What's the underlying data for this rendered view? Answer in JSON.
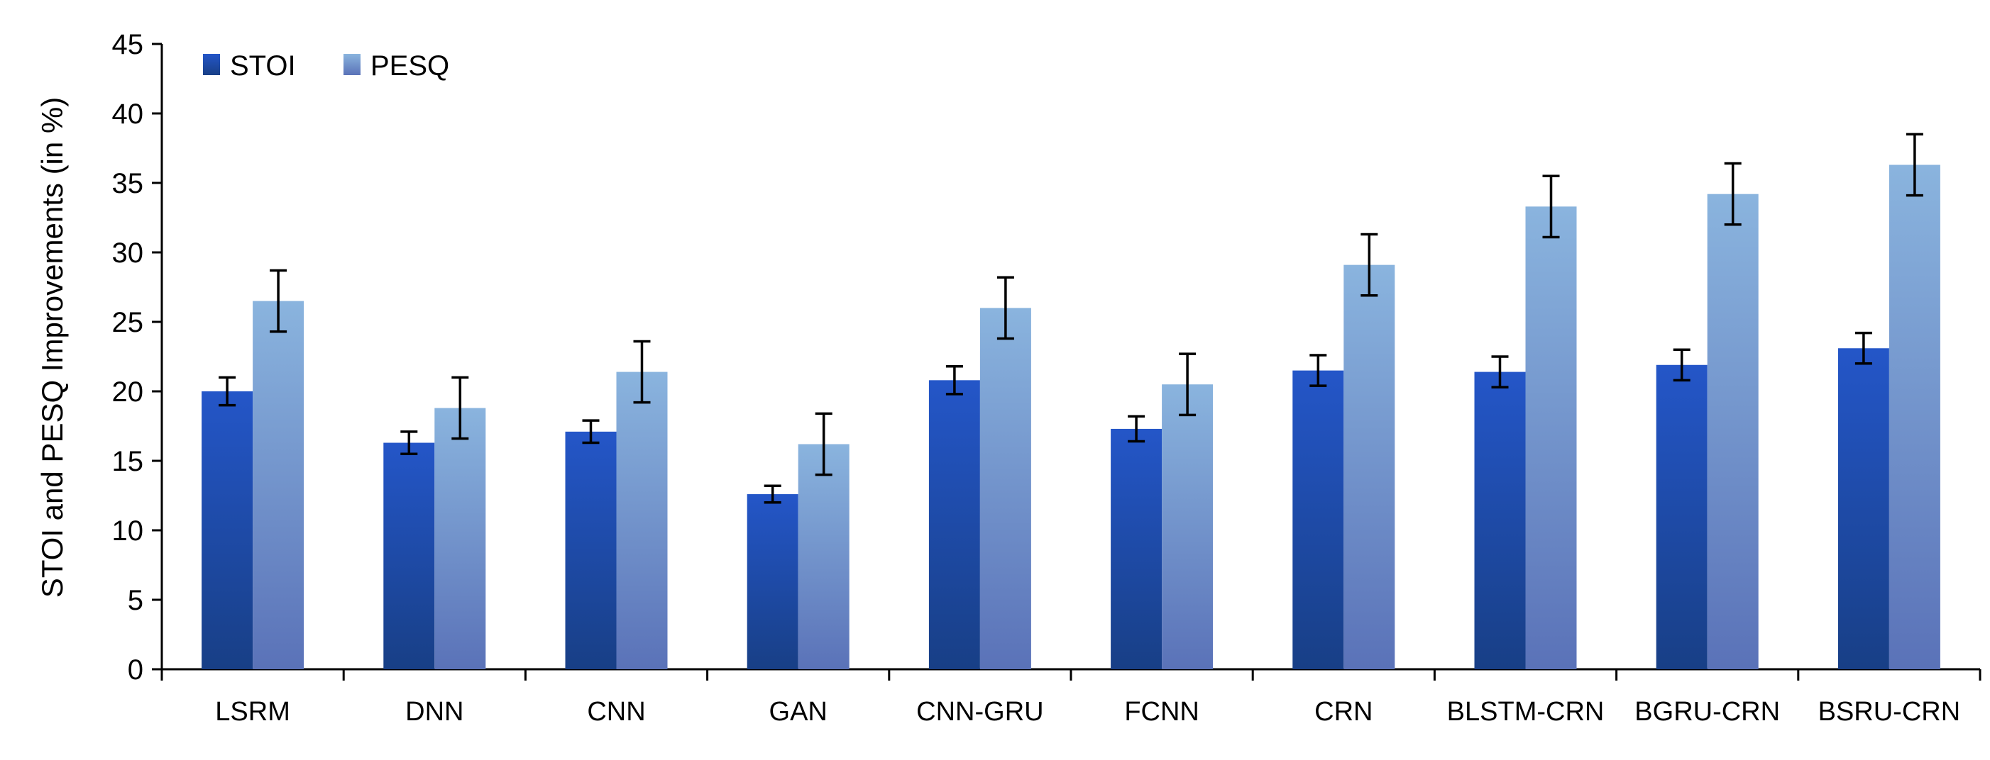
{
  "chart_data": {
    "type": "bar",
    "title": "",
    "xlabel": "",
    "ylabel": "STOI and PESQ Improvements (in %)",
    "ylim": [
      0,
      45
    ],
    "yticks": [
      0,
      5,
      10,
      15,
      20,
      25,
      30,
      35,
      40,
      45
    ],
    "grid": false,
    "legend_position": "top-left",
    "categories": [
      "LSRM",
      "DNN",
      "CNN",
      "GAN",
      "CNN-GRU",
      "FCNN",
      "CRN",
      "BLSTM-CRN",
      "BGRU-CRN",
      "BSRU-CRN"
    ],
    "series": [
      {
        "name": "STOI",
        "color_top": "#2456c8",
        "color_bottom": "#183f86",
        "values": [
          20.0,
          16.3,
          17.1,
          12.6,
          20.8,
          17.3,
          21.5,
          21.4,
          21.9,
          23.1
        ],
        "error": [
          1.0,
          0.8,
          0.8,
          0.6,
          1.0,
          0.9,
          1.1,
          1.1,
          1.1,
          1.1
        ]
      },
      {
        "name": "PESQ",
        "color_top": "#8ab4de",
        "color_bottom": "#5a72b8",
        "values": [
          26.5,
          18.8,
          21.4,
          16.2,
          26.0,
          20.5,
          29.1,
          33.3,
          34.2,
          36.3
        ],
        "error": [
          2.2,
          2.2,
          2.2,
          2.2,
          2.2,
          2.2,
          2.2,
          2.2,
          2.2,
          2.2
        ]
      }
    ]
  }
}
